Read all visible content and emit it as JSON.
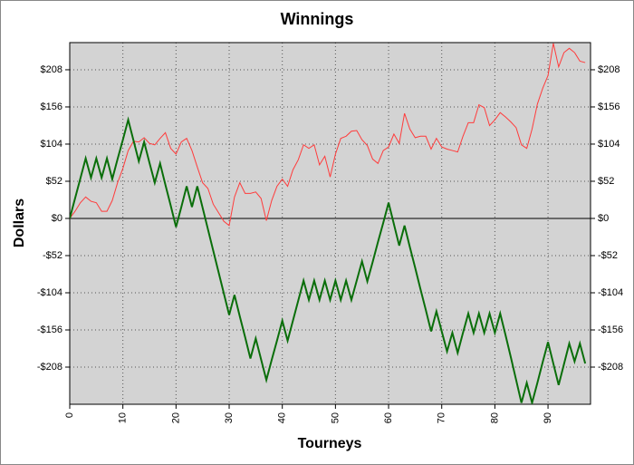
{
  "chart_data": {
    "type": "line",
    "title": "Winnings",
    "x_label": "Tourneys",
    "y_label": "Dollars",
    "x": [
      0,
      1,
      2,
      3,
      4,
      5,
      6,
      7,
      8,
      9,
      10,
      11,
      12,
      13,
      14,
      15,
      16,
      17,
      18,
      19,
      20,
      21,
      22,
      23,
      24,
      25,
      26,
      27,
      28,
      29,
      30,
      31,
      32,
      33,
      34,
      35,
      36,
      37,
      38,
      39,
      40,
      41,
      42,
      43,
      44,
      45,
      46,
      47,
      48,
      49,
      50,
      51,
      52,
      53,
      54,
      55,
      56,
      57,
      58,
      59,
      60,
      61,
      62,
      63,
      64,
      65,
      66,
      67,
      68,
      69,
      70,
      71,
      72,
      73,
      74,
      75,
      76,
      77,
      78,
      79,
      80,
      81,
      82,
      83,
      84,
      85,
      86,
      87,
      88,
      89,
      90,
      91,
      92,
      93,
      94,
      95,
      96,
      97
    ],
    "series": [
      {
        "color": "#ff3b3b",
        "width": 1,
        "values": [
          0,
          10,
          22,
          30,
          24,
          22,
          10,
          10,
          25,
          50,
          70,
          95,
          108,
          107,
          113,
          105,
          103,
          112,
          120,
          98,
          90,
          107,
          112,
          95,
          72,
          50,
          42,
          20,
          8,
          -4,
          -10,
          30,
          50,
          35,
          35,
          37,
          28,
          -3,
          25,
          45,
          55,
          45,
          68,
          82,
          103,
          98,
          103,
          75,
          87,
          58,
          90,
          112,
          115,
          122,
          123,
          110,
          102,
          83,
          77,
          95,
          100,
          118,
          105,
          147,
          125,
          113,
          115,
          115,
          97,
          112,
          100,
          97,
          95,
          93,
          115,
          134,
          134,
          159,
          155,
          130,
          138,
          148,
          142,
          135,
          127,
          103,
          98,
          125,
          160,
          182,
          200,
          245,
          212,
          232,
          238,
          232,
          220,
          218
        ]
      },
      {
        "color": "#0a6e0a",
        "width": 2,
        "values": [
          0,
          28,
          56,
          84,
          57,
          84,
          57,
          84,
          55,
          83,
          110,
          138,
          109,
          80,
          107,
          78,
          50,
          77,
          47,
          18,
          -12,
          16,
          45,
          16,
          45,
          15,
          -15,
          -45,
          -75,
          -105,
          -135,
          -107,
          -137,
          -166,
          -196,
          -168,
          -197,
          -226,
          -198,
          -171,
          -143,
          -171,
          -143,
          -115,
          -87,
          -114,
          -87,
          -114,
          -87,
          -114,
          -87,
          -114,
          -87,
          -114,
          -87,
          -60,
          -88,
          -61,
          -33,
          -6,
          22,
          -8,
          -38,
          -10,
          -40,
          -69,
          -99,
          -128,
          -158,
          -130,
          -158,
          -186,
          -160,
          -188,
          -160,
          -133,
          -160,
          -133,
          -160,
          -133,
          -160,
          -133,
          -163,
          -194,
          -226,
          -258,
          -230,
          -258,
          -230,
          -201,
          -173,
          -203,
          -233,
          -204,
          -175,
          -200,
          -175,
          -203
        ]
      }
    ],
    "xlim": [
      0,
      98
    ],
    "xticks": [
      0,
      10,
      20,
      30,
      40,
      50,
      60,
      70,
      80,
      90
    ],
    "ylim": [
      -260,
      246
    ],
    "yticks": [
      {
        "value": -208,
        "label": "-$208"
      },
      {
        "value": -156,
        "label": "-$156"
      },
      {
        "value": -104,
        "label": "-$104"
      },
      {
        "value": -52,
        "label": "-$52"
      },
      {
        "value": 0,
        "label": "$0"
      },
      {
        "value": 52,
        "label": "$52"
      },
      {
        "value": 104,
        "label": "$104"
      },
      {
        "value": 156,
        "label": "$156"
      },
      {
        "value": 208,
        "label": "$208"
      }
    ],
    "grid": true,
    "plot_background": "#d3d3d3"
  }
}
